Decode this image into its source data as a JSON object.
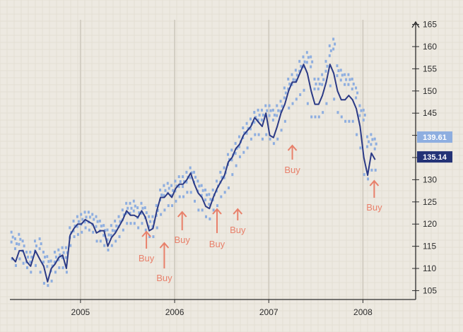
{
  "colors": {
    "background": "#ede9e1",
    "grid_fine": "#e3ded4",
    "grid_year": "#d3cec3",
    "axis": "#2d2d2d",
    "close_line": "#2b3a86",
    "bar_marks": "#8eaee0",
    "buy": "#e8806a",
    "badge_light": "#8eaee0",
    "badge_dark": "#233276"
  },
  "chart_data": {
    "type": "line",
    "title": "",
    "xlabel": "",
    "ylabel": "",
    "x_ticks": [
      "2005",
      "2006",
      "2007",
      "2008"
    ],
    "y_ticks": [
      105,
      110,
      115,
      120,
      125,
      130,
      135,
      140,
      145,
      150,
      155,
      160,
      165
    ],
    "ylim": [
      103,
      167
    ],
    "xlim": [
      2004.25,
      2008.5
    ],
    "grid": true,
    "series": [
      {
        "kind": "line",
        "x": [
          2004.27,
          2004.31,
          2004.35,
          2004.39,
          2004.43,
          2004.47,
          2004.52,
          2004.57,
          2004.61,
          2004.65,
          2004.69,
          2004.73,
          2004.77,
          2004.81,
          2004.85,
          2004.89,
          2004.93,
          2004.97,
          2005.01,
          2005.05,
          2005.09,
          2005.13,
          2005.17,
          2005.21,
          2005.25,
          2005.29,
          2005.33,
          2005.37,
          2005.41,
          2005.45,
          2005.49,
          2005.53,
          2005.57,
          2005.61,
          2005.65,
          2005.69,
          2005.73,
          2005.77,
          2005.81,
          2005.85,
          2005.89,
          2005.93,
          2005.97,
          2006.01,
          2006.05,
          2006.09,
          2006.13,
          2006.17,
          2006.21,
          2006.25,
          2006.29,
          2006.33,
          2006.37,
          2006.41,
          2006.45,
          2006.49,
          2006.53,
          2006.57,
          2006.61,
          2006.65,
          2006.69,
          2006.73,
          2006.77,
          2006.81,
          2006.85,
          2006.89,
          2006.93,
          2006.97,
          2007.01,
          2007.05,
          2007.09,
          2007.13,
          2007.17,
          2007.21,
          2007.25,
          2007.29,
          2007.33,
          2007.37,
          2007.41,
          2007.45,
          2007.49,
          2007.53,
          2007.57,
          2007.61,
          2007.65,
          2007.69,
          2007.73,
          2007.77,
          2007.81,
          2007.85,
          2007.89,
          2007.93,
          2007.97,
          2008.01,
          2008.05,
          2008.09,
          2008.13
        ],
        "values": [
          112.5,
          111.5,
          114,
          114,
          111.5,
          110.5,
          114,
          112,
          110.5,
          107,
          110,
          111,
          112.5,
          113,
          110,
          117.5,
          119,
          120,
          120,
          121,
          120.5,
          120,
          118,
          118.5,
          118.5,
          115,
          117,
          118,
          119.5,
          121,
          123,
          122,
          122,
          121.5,
          123,
          121.5,
          118.5,
          119,
          123,
          126,
          126,
          127,
          126,
          128,
          129,
          129,
          130,
          131.5,
          129,
          127,
          126,
          124,
          123.5,
          126,
          128,
          129.5,
          131,
          134,
          135,
          137,
          138,
          140,
          141,
          142,
          144,
          143,
          142,
          145,
          140,
          139.5,
          142,
          145,
          147,
          150,
          152,
          152,
          154,
          156,
          154,
          150,
          147,
          147,
          149,
          152,
          156,
          154,
          150,
          148,
          148,
          149,
          148,
          146,
          142,
          135,
          131,
          136,
          134.5
        ]
      },
      {
        "kind": "price-bars",
        "x": [
          2004.27,
          2004.31,
          2004.35,
          2004.39,
          2004.43,
          2004.47,
          2004.52,
          2004.57,
          2004.61,
          2004.65,
          2004.69,
          2004.73,
          2004.77,
          2004.81,
          2004.85,
          2004.89,
          2004.93,
          2004.97,
          2005.01,
          2005.05,
          2005.09,
          2005.13,
          2005.17,
          2005.21,
          2005.25,
          2005.29,
          2005.33,
          2005.37,
          2005.41,
          2005.45,
          2005.49,
          2005.53,
          2005.57,
          2005.61,
          2005.65,
          2005.69,
          2005.73,
          2005.77,
          2005.81,
          2005.85,
          2005.89,
          2005.93,
          2005.97,
          2006.01,
          2006.05,
          2006.09,
          2006.13,
          2006.17,
          2006.21,
          2006.25,
          2006.29,
          2006.33,
          2006.37,
          2006.41,
          2006.45,
          2006.49,
          2006.53,
          2006.57,
          2006.61,
          2006.65,
          2006.69,
          2006.73,
          2006.77,
          2006.81,
          2006.85,
          2006.89,
          2006.93,
          2006.97,
          2007.01,
          2007.05,
          2007.09,
          2007.13,
          2007.17,
          2007.21,
          2007.25,
          2007.29,
          2007.33,
          2007.37,
          2007.41,
          2007.45,
          2007.49,
          2007.53,
          2007.57,
          2007.61,
          2007.65,
          2007.69,
          2007.73,
          2007.77,
          2007.81,
          2007.85,
          2007.89,
          2007.93,
          2007.97,
          2008.01,
          2008.05,
          2008.09,
          2008.13
        ],
        "high": [
          118.5,
          117,
          118,
          116.5,
          114,
          114,
          116.5,
          117,
          114,
          113,
          112,
          114,
          114.5,
          115,
          115,
          119.5,
          121,
          122,
          122.5,
          123,
          123,
          122.5,
          122,
          121,
          120,
          119,
          120,
          121,
          122,
          123.5,
          125,
          125,
          125.5,
          124,
          125,
          124,
          122,
          122,
          124.5,
          128,
          129,
          129.5,
          129,
          130,
          131,
          131,
          132,
          133,
          132,
          130,
          129,
          128,
          127,
          128,
          130,
          132,
          133,
          136,
          137,
          138.5,
          140,
          142,
          143,
          144,
          145.5,
          146,
          146,
          147,
          147,
          146,
          147,
          148,
          151,
          153,
          154,
          155,
          157,
          158,
          159,
          158,
          153,
          153,
          154,
          157,
          160.5,
          162,
          156,
          155,
          154,
          154,
          153,
          151,
          147,
          146,
          140,
          140.5,
          139.5
        ],
        "low": [
          112,
          110.5,
          112,
          111,
          110,
          109,
          110.5,
          109,
          106.5,
          106,
          107,
          109,
          110,
          110,
          109,
          115,
          117,
          117.5,
          118,
          119,
          118.5,
          118,
          116,
          116,
          115,
          114,
          115,
          116,
          117,
          118.5,
          120,
          120,
          120,
          119,
          120,
          118.5,
          117,
          117,
          119,
          122,
          123,
          124,
          124,
          125,
          126,
          126,
          127,
          127,
          125,
          123,
          123,
          121.5,
          121,
          123,
          124,
          126,
          127,
          128,
          131,
          133,
          135,
          136,
          137,
          139,
          140,
          140,
          139,
          140,
          139,
          138,
          139,
          141,
          143,
          146,
          147,
          148,
          149,
          150,
          147,
          144,
          144,
          144,
          145,
          147,
          151,
          148,
          145,
          144,
          143,
          143,
          143,
          140,
          137,
          131,
          130,
          132,
          132
        ]
      }
    ],
    "annotations": {
      "buy_signals": [
        {
          "label": "Buy",
          "x": 2005.7
        },
        {
          "label": "Buy",
          "x": 2005.89
        },
        {
          "label": "Buy",
          "x": 2006.08
        },
        {
          "label": "Buy",
          "x": 2006.45
        },
        {
          "label": "Buy",
          "x": 2006.67
        },
        {
          "label": "Buy",
          "x": 2007.25
        },
        {
          "label": "Buy",
          "x": 2008.12
        }
      ],
      "price_badges": [
        {
          "text": "139.61",
          "value": 139.61,
          "style": "light"
        },
        {
          "text": "135.14",
          "value": 135.14,
          "style": "dark"
        }
      ]
    }
  }
}
